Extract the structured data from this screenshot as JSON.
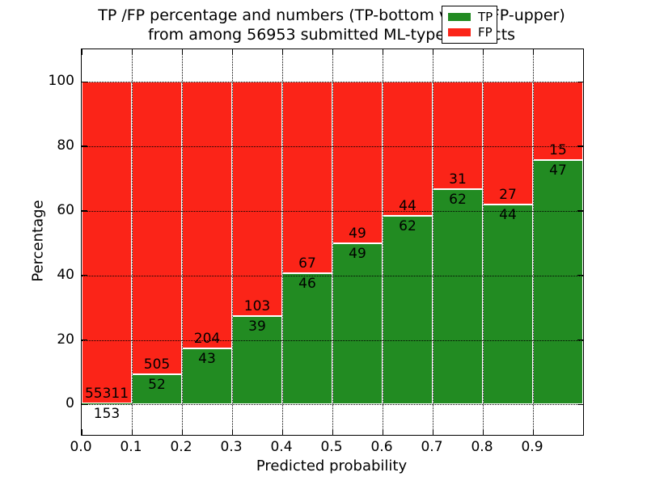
{
  "title": {
    "line1": "TP /FP percentage and numbers (TP-bottom value, FP-upper)",
    "line2": "from among 56953 submitted ML-type contacts"
  },
  "chart_data": {
    "type": "bar",
    "subtype": "stacked-percentage",
    "title": "TP /FP percentage and numbers (TP-bottom value, FP-upper) from among 56953 submitted ML-type contacts",
    "total_submitted_contacts": 56953,
    "xlabel": "Predicted probability",
    "ylabel": "Percentage",
    "x_bin_width": 0.1,
    "x_tick_values": [
      0.0,
      0.1,
      0.2,
      0.3,
      0.4,
      0.5,
      0.6,
      0.7,
      0.8,
      0.9
    ],
    "x_tick_labels": [
      "0.0",
      "0.1",
      "0.2",
      "0.3",
      "0.4",
      "0.5",
      "0.6",
      "0.7",
      "0.8",
      "0.9"
    ],
    "y_ticks": [
      0,
      20,
      40,
      60,
      80,
      100
    ],
    "xlim": [
      0.0,
      1.0
    ],
    "ylim": [
      -9.4,
      110.0
    ],
    "grid": {
      "style": "dotted",
      "color": "#000000",
      "on": true
    },
    "bar_edge_color": "#ffffff",
    "series": [
      {
        "name": "TP",
        "color": "#228b22",
        "stack_position": "bottom",
        "counts": [
          153,
          52,
          43,
          39,
          46,
          49,
          62,
          62,
          44,
          47
        ]
      },
      {
        "name": "FP",
        "color": "#fb2418",
        "stack_position": "top",
        "counts": [
          55311,
          505,
          204,
          103,
          67,
          49,
          44,
          31,
          27,
          15
        ]
      }
    ],
    "tp_percent_of_bin": [
      0.28,
      9.34,
      17.41,
      27.46,
      40.71,
      50.0,
      58.49,
      66.67,
      61.97,
      75.81
    ],
    "legend": {
      "position": "upper-right",
      "entries": [
        {
          "label": "TP",
          "color": "#228b22"
        },
        {
          "label": "FP",
          "color": "#fb2418"
        }
      ]
    },
    "annotation_scheme": "TP count below segment boundary, FP count above segment boundary"
  },
  "colors": {
    "tp_green": "#228b22",
    "fp_red": "#fb2418",
    "background": "#ffffff",
    "text": "#000000"
  }
}
